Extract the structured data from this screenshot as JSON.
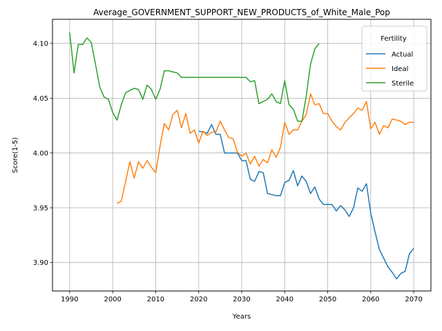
{
  "chart_data": {
    "type": "line",
    "title": "Average_GOVERNMENT_SUPPORT_NEW_PRODUCTS_of_White_Male_Pop",
    "xlabel": "Years",
    "ylabel": "Score(1-5)",
    "xlim": [
      1986,
      2074
    ],
    "ylim": [
      3.874,
      4.122
    ],
    "xticks": [
      1990,
      2000,
      2010,
      2020,
      2030,
      2040,
      2050,
      2060,
      2070
    ],
    "yticks": [
      3.9,
      3.95,
      4.0,
      4.05,
      4.1
    ],
    "xtick_labels": [
      "1990",
      "2000",
      "2010",
      "2020",
      "2030",
      "2040",
      "2050",
      "2060",
      "2070"
    ],
    "ytick_labels": [
      "3.90",
      "3.95",
      "4.00",
      "4.05",
      "4.10"
    ],
    "grid": true,
    "legend": {
      "title": "Fertility",
      "placement": "top-right"
    },
    "series": [
      {
        "name": "Actual",
        "color": "#1f77b4",
        "x": [
          2020,
          2021,
          2022,
          2023,
          2024,
          2025,
          2026,
          2027,
          2028,
          2029,
          2030,
          2031,
          2032,
          2033,
          2034,
          2035,
          2036,
          2037,
          2038,
          2039,
          2040,
          2041,
          2042,
          2043,
          2044,
          2045,
          2046,
          2047,
          2048,
          2049,
          2050,
          2051,
          2052,
          2053,
          2054,
          2055,
          2056,
          2057,
          2058,
          2059,
          2060,
          2061,
          2062,
          2063,
          2064,
          2065,
          2066,
          2067,
          2068,
          2069,
          2070
        ],
        "y": [
          4.02,
          4.019,
          4.018,
          4.026,
          4.017,
          4.017,
          4.0,
          4.0,
          4.0,
          4.0,
          3.993,
          3.993,
          3.976,
          3.974,
          3.983,
          3.982,
          3.963,
          3.962,
          3.961,
          3.961,
          3.973,
          3.975,
          3.984,
          3.97,
          3.979,
          3.974,
          3.963,
          3.969,
          3.958,
          3.953,
          3.953,
          3.953,
          3.947,
          3.952,
          3.948,
          3.942,
          3.95,
          3.968,
          3.965,
          3.972,
          3.945,
          3.928,
          3.912,
          3.904,
          3.896,
          3.891,
          3.885,
          3.89,
          3.892,
          3.908,
          3.913
        ]
      },
      {
        "name": "Ideal",
        "color": "#ff7f0e",
        "x": [
          2001,
          2002,
          2003,
          2004,
          2005,
          2006,
          2007,
          2008,
          2009,
          2010,
          2011,
          2012,
          2013,
          2014,
          2015,
          2016,
          2017,
          2018,
          2019,
          2020,
          2021,
          2022,
          2023,
          2024,
          2025,
          2026,
          2027,
          2028,
          2029,
          2030,
          2031,
          2032,
          2033,
          2034,
          2035,
          2036,
          2037,
          2038,
          2039,
          2040,
          2041,
          2042,
          2043,
          2044,
          2045,
          2046,
          2047,
          2048,
          2049,
          2050,
          2051,
          2052,
          2053,
          2054,
          2055,
          2056,
          2057,
          2058,
          2059,
          2060,
          2061,
          2062,
          2063,
          2064,
          2065,
          2066,
          2067,
          2068,
          2069,
          2070
        ],
        "y": [
          3.954,
          3.956,
          3.974,
          3.992,
          3.977,
          3.992,
          3.986,
          3.993,
          3.987,
          3.982,
          4.006,
          4.027,
          4.021,
          4.035,
          4.039,
          4.023,
          4.036,
          4.018,
          4.021,
          4.009,
          4.02,
          4.016,
          4.019,
          4.019,
          4.029,
          4.021,
          4.014,
          4.013,
          4.001,
          3.997,
          4.0,
          3.99,
          3.997,
          3.988,
          3.994,
          3.991,
          4.003,
          3.996,
          4.005,
          4.028,
          4.017,
          4.021,
          4.021,
          4.029,
          4.035,
          4.054,
          4.044,
          4.045,
          4.036,
          4.036,
          4.029,
          4.024,
          4.021,
          4.028,
          4.032,
          4.036,
          4.041,
          4.039,
          4.047,
          4.022,
          4.028,
          4.017,
          4.025,
          4.023,
          4.031,
          4.03,
          4.029,
          4.026,
          4.028,
          4.028
        ]
      },
      {
        "name": "Sterile",
        "color": "#2ca02c",
        "x": [
          1990,
          1991,
          1992,
          1993,
          1994,
          1995,
          1996,
          1997,
          1998,
          1999,
          2000,
          2001,
          2002,
          2003,
          2004,
          2005,
          2006,
          2007,
          2008,
          2009,
          2010,
          2011,
          2012,
          2013,
          2014,
          2015,
          2016,
          2017,
          2018,
          2019,
          2020,
          2021,
          2022,
          2023,
          2024,
          2025,
          2026,
          2027,
          2028,
          2029,
          2030,
          2031,
          2032,
          2033,
          2034,
          2035,
          2036,
          2037,
          2038,
          2039,
          2040,
          2041,
          2042,
          2043,
          2044,
          2045,
          2046,
          2047,
          2048
        ],
        "y": [
          4.11,
          4.073,
          4.099,
          4.099,
          4.105,
          4.101,
          4.081,
          4.06,
          4.051,
          4.049,
          4.037,
          4.03,
          4.044,
          4.055,
          4.057,
          4.059,
          4.058,
          4.049,
          4.062,
          4.058,
          4.049,
          4.058,
          4.075,
          4.075,
          4.074,
          4.073,
          4.069,
          4.069,
          4.069,
          4.069,
          4.069,
          4.069,
          4.069,
          4.069,
          4.069,
          4.069,
          4.069,
          4.069,
          4.069,
          4.069,
          4.069,
          4.069,
          4.065,
          4.066,
          4.045,
          4.047,
          4.049,
          4.054,
          4.047,
          4.045,
          4.066,
          4.044,
          4.04,
          4.029,
          4.029,
          4.052,
          4.081,
          4.095,
          4.1
        ]
      }
    ]
  }
}
